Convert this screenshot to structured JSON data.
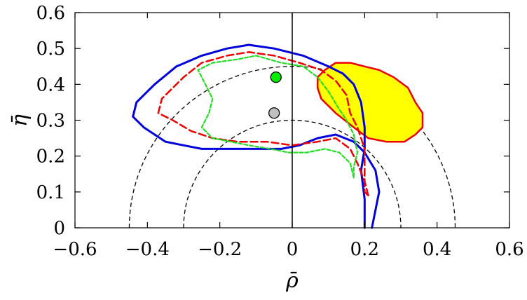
{
  "chart_data": {
    "type": "contour",
    "xlabel": "ρ̄",
    "ylabel": "η̄",
    "xlim": [
      -0.6,
      0.6
    ],
    "ylim": [
      0,
      0.6
    ],
    "xticks": [
      "−0.6",
      "−0.4",
      "−0.2",
      "0",
      "0.2",
      "0.4",
      "0.6"
    ],
    "yticks": [
      "0",
      "0.1",
      "0.2",
      "0.3",
      "0.4",
      "0.5",
      "0.6"
    ],
    "grid": false,
    "colors": {
      "blue": "#0000dd",
      "red": "#ee0000",
      "green": "#22dd22",
      "yellow_fill": "#ffff00",
      "yellow_edge": "#ee0000",
      "point_green": "#00ee00",
      "point_gray": "#c0c0c0"
    },
    "circles": [
      {
        "radius": 0.3,
        "style": "dashed"
      },
      {
        "radius": 0.45,
        "style": "dashed"
      }
    ],
    "series": [
      {
        "style": "solid-blue",
        "points": [
          [
            0.22,
            0
          ],
          [
            0.24,
            0.1
          ],
          [
            0.23,
            0.16
          ],
          [
            0.2,
            0.21
          ],
          [
            0.17,
            0.24
          ],
          [
            0.12,
            0.26
          ],
          [
            0.07,
            0.25
          ],
          [
            0.02,
            0.23
          ],
          [
            -0.03,
            0.22
          ],
          [
            -0.1,
            0.22
          ],
          [
            -0.18,
            0.22
          ],
          [
            -0.25,
            0.22
          ],
          [
            -0.3,
            0.23
          ],
          [
            -0.35,
            0.24
          ],
          [
            -0.38,
            0.26
          ],
          [
            -0.41,
            0.28
          ],
          [
            -0.44,
            0.31
          ],
          [
            -0.43,
            0.35
          ],
          [
            -0.38,
            0.4
          ],
          [
            -0.32,
            0.45
          ],
          [
            -0.25,
            0.48
          ],
          [
            -0.18,
            0.5
          ],
          [
            -0.12,
            0.51
          ],
          [
            -0.05,
            0.5
          ],
          [
            0.03,
            0.48
          ],
          [
            0.1,
            0.45
          ],
          [
            0.14,
            0.43
          ],
          [
            0.17,
            0.4
          ],
          [
            0.19,
            0.35
          ],
          [
            0.2,
            0.28
          ],
          [
            0.2,
            0.22
          ],
          [
            0.19,
            0.16
          ],
          [
            0.2,
            0.08
          ],
          [
            0.2,
            0
          ]
        ]
      },
      {
        "style": "dashed-red",
        "points": [
          [
            0.21,
            0.09
          ],
          [
            0.2,
            0.13
          ],
          [
            0.18,
            0.18
          ],
          [
            0.16,
            0.22
          ],
          [
            0.12,
            0.25
          ],
          [
            0.07,
            0.24
          ],
          [
            0.0,
            0.23
          ],
          [
            -0.07,
            0.24
          ],
          [
            -0.15,
            0.24
          ],
          [
            -0.22,
            0.25
          ],
          [
            -0.28,
            0.27
          ],
          [
            -0.33,
            0.3
          ],
          [
            -0.37,
            0.32
          ],
          [
            -0.36,
            0.36
          ],
          [
            -0.33,
            0.39
          ],
          [
            -0.3,
            0.42
          ],
          [
            -0.25,
            0.46
          ],
          [
            -0.18,
            0.48
          ],
          [
            -0.12,
            0.49
          ],
          [
            -0.05,
            0.48
          ],
          [
            0.02,
            0.46
          ],
          [
            0.08,
            0.44
          ],
          [
            0.12,
            0.41
          ],
          [
            0.15,
            0.37
          ],
          [
            0.16,
            0.32
          ],
          [
            0.18,
            0.28
          ],
          [
            0.2,
            0.22
          ],
          [
            0.2,
            0.15
          ],
          [
            0.2,
            0.1
          ]
        ]
      },
      {
        "style": "dotted-green",
        "points": [
          [
            0.17,
            0.14
          ],
          [
            0.16,
            0.18
          ],
          [
            0.13,
            0.21
          ],
          [
            0.09,
            0.22
          ],
          [
            0.04,
            0.21
          ],
          [
            -0.01,
            0.21
          ],
          [
            -0.06,
            0.22
          ],
          [
            -0.12,
            0.23
          ],
          [
            -0.17,
            0.24
          ],
          [
            -0.22,
            0.25
          ],
          [
            -0.25,
            0.28
          ],
          [
            -0.23,
            0.32
          ],
          [
            -0.22,
            0.36
          ],
          [
            -0.24,
            0.4
          ],
          [
            -0.26,
            0.44
          ],
          [
            -0.22,
            0.46
          ],
          [
            -0.15,
            0.47
          ],
          [
            -0.1,
            0.48
          ],
          [
            -0.03,
            0.46
          ],
          [
            0.03,
            0.45
          ],
          [
            0.07,
            0.42
          ],
          [
            0.1,
            0.38
          ],
          [
            0.13,
            0.33
          ],
          [
            0.15,
            0.3
          ],
          [
            0.17,
            0.26
          ],
          [
            0.18,
            0.21
          ],
          [
            0.17,
            0.17
          ],
          [
            0.17,
            0.14
          ]
        ]
      },
      {
        "style": "yellow-region",
        "points": [
          [
            0.07,
            0.42
          ],
          [
            0.09,
            0.44
          ],
          [
            0.12,
            0.46
          ],
          [
            0.16,
            0.46
          ],
          [
            0.2,
            0.45
          ],
          [
            0.24,
            0.44
          ],
          [
            0.28,
            0.42
          ],
          [
            0.32,
            0.39
          ],
          [
            0.34,
            0.35
          ],
          [
            0.36,
            0.32
          ],
          [
            0.36,
            0.28
          ],
          [
            0.34,
            0.26
          ],
          [
            0.31,
            0.24
          ],
          [
            0.26,
            0.24
          ],
          [
            0.21,
            0.25
          ],
          [
            0.17,
            0.28
          ],
          [
            0.12,
            0.32
          ],
          [
            0.08,
            0.36
          ],
          [
            0.07,
            0.39
          ]
        ]
      }
    ],
    "points": [
      {
        "x": -0.045,
        "y": 0.42,
        "color": "#00ee00"
      },
      {
        "x": -0.05,
        "y": 0.32,
        "color": "#c0c0c0"
      }
    ]
  }
}
